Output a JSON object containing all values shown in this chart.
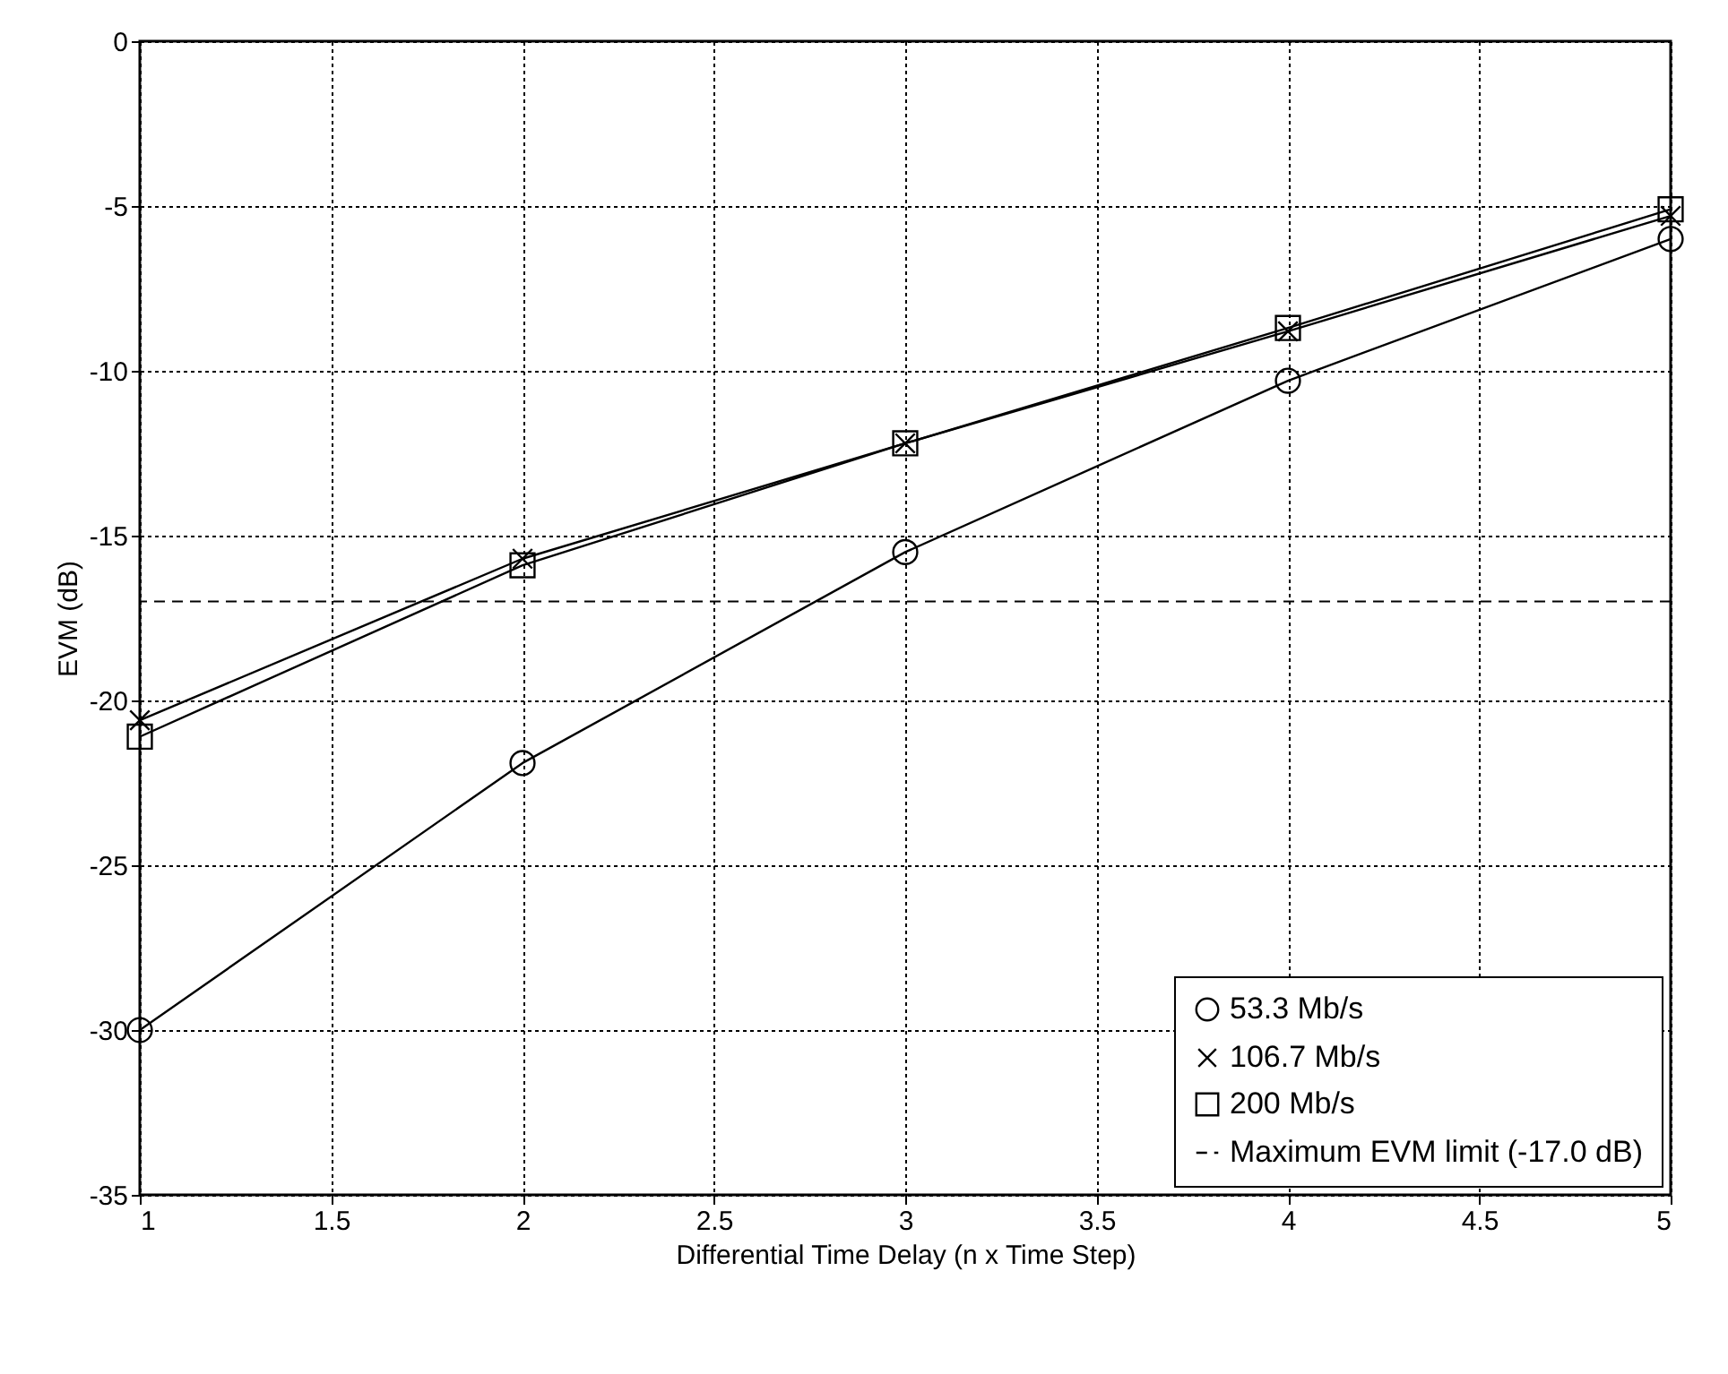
{
  "chart_data": {
    "type": "line",
    "xlabel": "Differential Time Delay (n x Time Step)",
    "ylabel": "EVM (dB)",
    "x": [
      1,
      2,
      3,
      4,
      5
    ],
    "series": [
      {
        "name": "53.3 Mb/s",
        "color": "#000000",
        "marker": "circle",
        "values": [
          -30.0,
          -21.9,
          -15.5,
          -10.3,
          -6.0
        ]
      },
      {
        "name": "106.7 Mb/s",
        "color": "#000000",
        "marker": "cross",
        "values": [
          -20.6,
          -15.7,
          -12.2,
          -8.8,
          -5.3
        ]
      },
      {
        "name": "200 Mb/s",
        "color": "#000000",
        "marker": "square",
        "values": [
          -21.1,
          -15.9,
          -12.2,
          -8.7,
          -5.1
        ]
      }
    ],
    "ref_lines": [
      {
        "axis": "y",
        "value": -17.0,
        "label": "Maximum EVM limit (-17.0 dB)",
        "color": "#000000",
        "line_style": "dashed"
      }
    ],
    "xlim": [
      1,
      5
    ],
    "xticks": [
      1,
      1.5,
      2,
      2.5,
      3,
      3.5,
      4,
      4.5,
      5
    ],
    "ylim": [
      -35,
      0
    ],
    "yticks": [
      -35,
      -30,
      -25,
      -20,
      -15,
      -10,
      -5,
      0
    ],
    "grid": true,
    "legend": "bottom right",
    "line_style": "solid"
  }
}
